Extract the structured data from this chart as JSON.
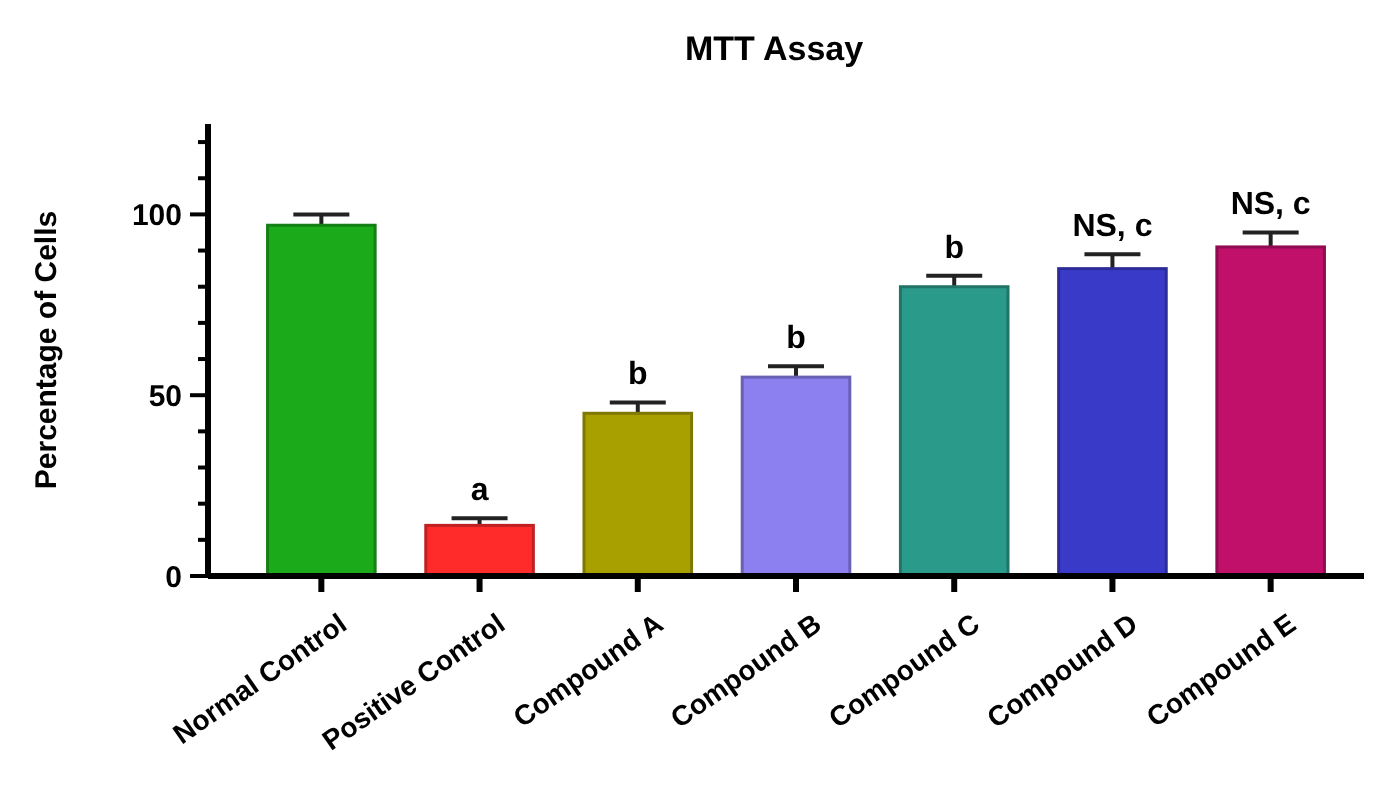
{
  "chart_data": {
    "type": "bar",
    "title": "MTT Assay",
    "ylabel": "Percentage of Cells",
    "categories": [
      "Normal Control",
      "Positive Control",
      "Compound A",
      "Compound B",
      "Compound C",
      "Compound D",
      "Compound E"
    ],
    "values": [
      97,
      14,
      45,
      55,
      80,
      85,
      91
    ],
    "errors": [
      3,
      2,
      3,
      3,
      3,
      4,
      4
    ],
    "colors": [
      "#1aaa1a",
      "#ff2a2a",
      "#a8a000",
      "#8c80f0",
      "#2a9a8a",
      "#3a3ac8",
      "#c0106a"
    ],
    "ylim": [
      0,
      125
    ],
    "yticks": [
      0,
      {
        "value": 10,
        "label": null
      },
      {
        "value": 20,
        "label": null
      },
      {
        "value": 30,
        "label": null
      },
      {
        "value": 40,
        "label": null
      },
      50,
      {
        "value": 60,
        "label": null
      },
      {
        "value": 70,
        "label": null
      },
      {
        "value": 80,
        "label": null
      },
      {
        "value": 90,
        "label": null
      },
      100,
      {
        "value": 110,
        "label": null
      },
      {
        "value": 120,
        "label": null
      }
    ],
    "annotations": [
      {
        "text": "a",
        "x": "Positive Control",
        "y": 16
      },
      {
        "text": "b",
        "x": "Compound A",
        "y": 48
      },
      {
        "text": "b",
        "x": "Compound B",
        "y": 58
      },
      {
        "text": "b",
        "x": "Compound C",
        "y": 83
      },
      {
        "text": "NS, c",
        "x": "Compound D",
        "y": 89
      },
      {
        "text": "NS, c",
        "x": "Compound E",
        "y": 95
      }
    ],
    "grid": false
  }
}
